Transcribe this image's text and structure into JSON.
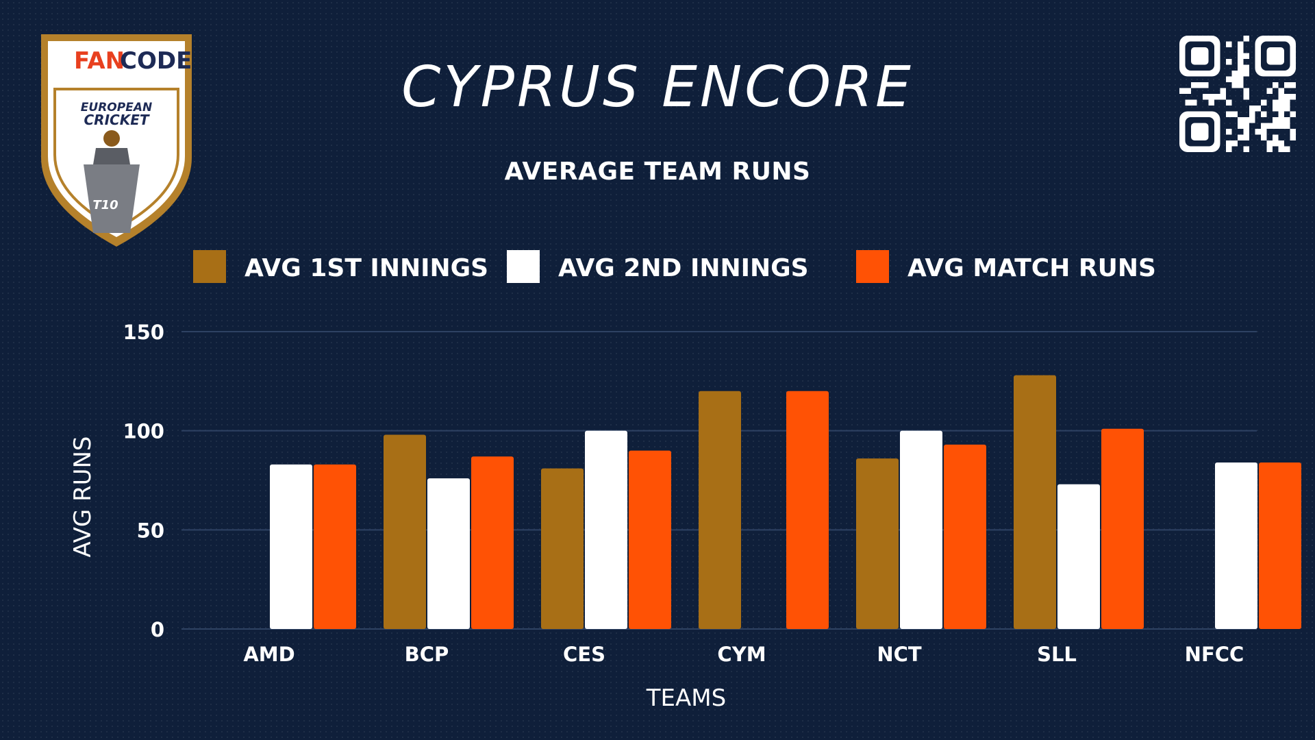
{
  "header": {
    "title": "CYPRUS ENCORE",
    "logo": {
      "brand_part1": "FAN",
      "brand_part2": "CODE",
      "line1": "EUROPEAN",
      "line2": "CRICKET",
      "format": "T10"
    },
    "qr_icon": "qr-code-icon"
  },
  "colors": {
    "background": "#0f1f3a",
    "series1": "#a86f16",
    "series2": "#ffffff",
    "series3": "#ff5205",
    "gridline": "#2e4263"
  },
  "chart_data": {
    "type": "bar",
    "title": "AVERAGE TEAM RUNS",
    "xlabel": "TEAMS",
    "ylabel": "AVG RUNS",
    "ylim": [
      0,
      150
    ],
    "yticks": [
      0,
      50,
      100,
      150
    ],
    "grid": true,
    "legend_position": "top",
    "categories": [
      "AMD",
      "BCP",
      "CES",
      "CYM",
      "NCT",
      "SLL",
      "NFCC"
    ],
    "series": [
      {
        "name": "AVG 1ST INNINGS",
        "values": [
          0,
          98,
          81,
          120,
          86,
          128,
          0
        ]
      },
      {
        "name": "AVG 2ND INNINGS",
        "values": [
          83,
          76,
          100,
          0,
          100,
          73,
          84
        ]
      },
      {
        "name": "AVG MATCH RUNS",
        "values": [
          83,
          87,
          90,
          120,
          93,
          101,
          84
        ]
      }
    ]
  }
}
